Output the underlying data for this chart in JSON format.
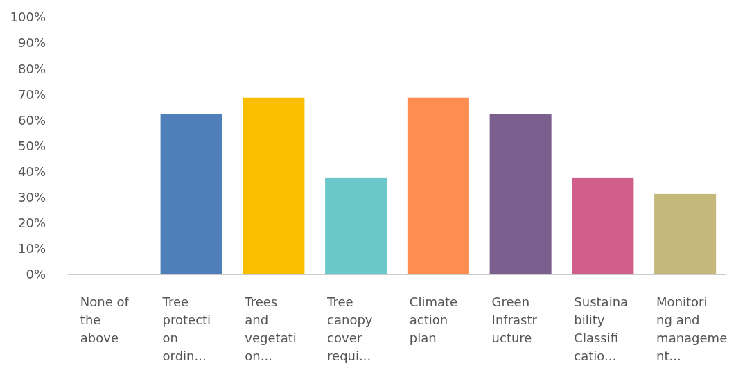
{
  "chart_data": {
    "type": "bar",
    "categories": [
      "None of the above",
      "Tree protection ordin...",
      "Trees and vegetation...",
      "Tree canopy cover requi...",
      "Climate action plan",
      "Green Infrastructure",
      "Sustainability Classificatio...",
      "Monitoring and management..."
    ],
    "values": [
      0,
      62.5,
      68.8,
      37.5,
      68.8,
      62.5,
      37.5,
      31.3
    ],
    "colors": [
      "#4f7fb8",
      "#4f7fb8",
      "#f9be00",
      "#6ac8cb",
      "#ff8c50",
      "#7b5f8f",
      "#d05f8c",
      "#c4b87b"
    ],
    "ylim": [
      0,
      100
    ],
    "yticks": [
      {
        "value": 0,
        "label": "0%"
      },
      {
        "value": 10,
        "label": "10%"
      },
      {
        "value": 20,
        "label": "20%"
      },
      {
        "value": 30,
        "label": "30%"
      },
      {
        "value": 40,
        "label": "40%"
      },
      {
        "value": 50,
        "label": "50%"
      },
      {
        "value": 60,
        "label": "60%"
      },
      {
        "value": 70,
        "label": "70%"
      },
      {
        "value": 80,
        "label": "80%"
      },
      {
        "value": 90,
        "label": "90%"
      },
      {
        "value": 100,
        "label": "100%"
      }
    ]
  }
}
